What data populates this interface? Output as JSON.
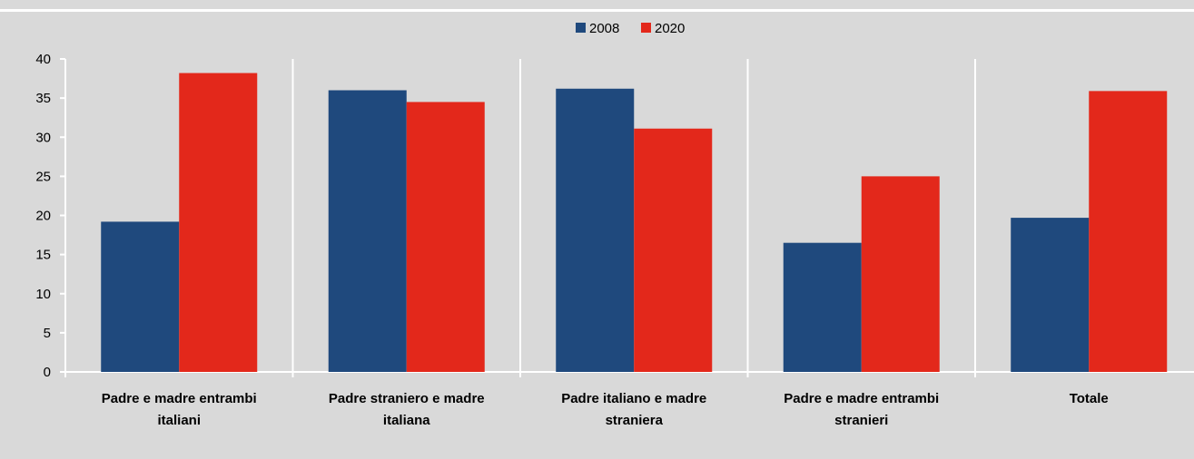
{
  "chart_data": {
    "type": "bar",
    "categories": [
      [
        "Padre e madre entrambi",
        "italiani"
      ],
      [
        "Padre straniero e madre",
        "italiana"
      ],
      [
        "Padre italiano e madre",
        "straniera"
      ],
      [
        "Padre e madre entrambi",
        "stranieri"
      ],
      [
        "Totale"
      ]
    ],
    "series": [
      {
        "name": "2008",
        "color": "#1f497d",
        "values": [
          19.2,
          36.0,
          36.2,
          16.5,
          19.7
        ]
      },
      {
        "name": "2020",
        "color": "#e3281b",
        "values": [
          38.2,
          34.5,
          31.1,
          25.0,
          35.9
        ]
      }
    ],
    "ylim": [
      0,
      40
    ],
    "yticks": [
      0,
      5,
      10,
      15,
      20,
      25,
      30,
      35,
      40
    ],
    "legend_position": "top-center",
    "grid": "vertical separators"
  }
}
